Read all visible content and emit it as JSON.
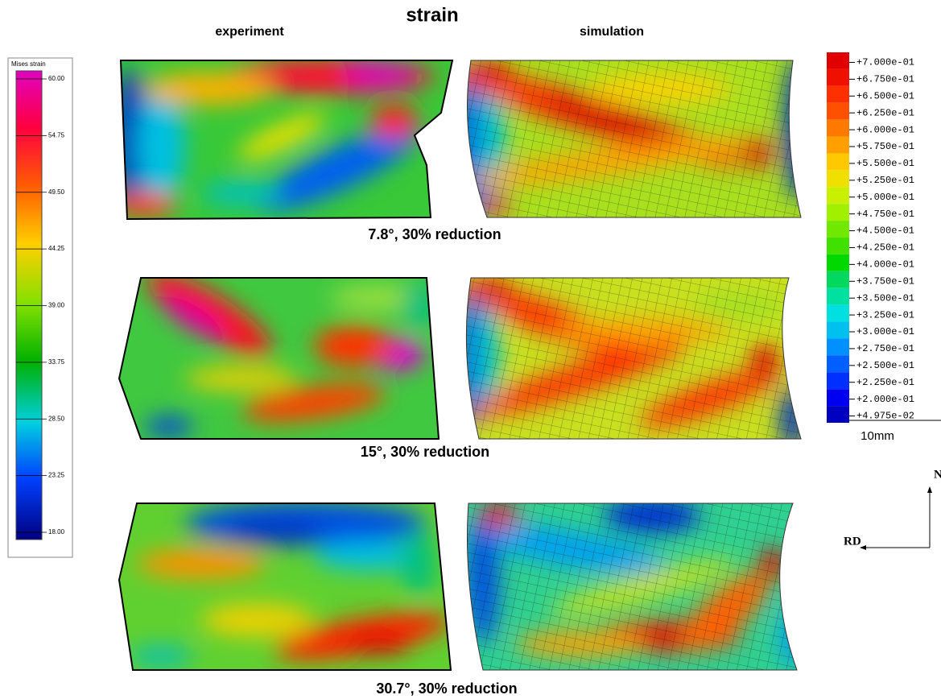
{
  "title": "strain",
  "columns": [
    "experiment",
    "simulation"
  ],
  "captions": [
    "7.8°, 30% reduction",
    "15°, 30% reduction",
    "30.7°, 30% reduction"
  ],
  "left_legend": {
    "title": "Mises strain",
    "ticks": [
      "60.00",
      "54.75",
      "49.50",
      "44.25",
      "39.00",
      "33.75",
      "28.50",
      "23.25",
      "18.00"
    ]
  },
  "right_legend": {
    "labels": [
      "+7.000e-01",
      "+6.750e-01",
      "+6.500e-01",
      "+6.250e-01",
      "+6.000e-01",
      "+5.750e-01",
      "+5.500e-01",
      "+5.250e-01",
      "+5.000e-01",
      "+4.750e-01",
      "+4.500e-01",
      "+4.250e-01",
      "+4.000e-01",
      "+3.750e-01",
      "+3.500e-01",
      "+3.250e-01",
      "+3.000e-01",
      "+2.750e-01",
      "+2.500e-01",
      "+2.250e-01",
      "+2.000e-01",
      "+4.975e-02"
    ]
  },
  "scale_bar": "10mm",
  "axes": {
    "vertical": "ND",
    "horizontal": "RD"
  }
}
